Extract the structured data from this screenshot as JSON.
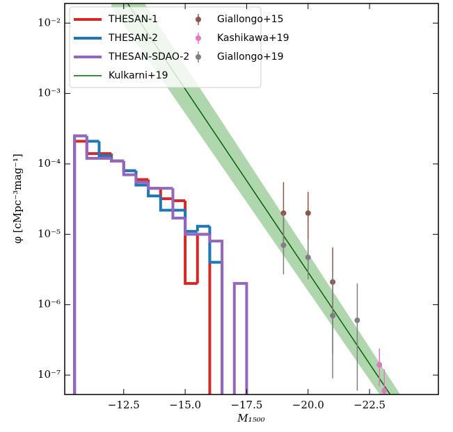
{
  "chart_data": {
    "type": "step-histogram",
    "x_label": "M₁₅₀₀",
    "y_label": "φ [cMpc⁻³mag⁻¹]",
    "xlim": [
      -10.1,
      -25.3
    ],
    "ylim": [
      5.3e-08,
      0.019
    ],
    "log_y": true,
    "xticks": [
      {
        "value": -12.5,
        "label": "−12.5"
      },
      {
        "value": -15,
        "label": "−15.0"
      },
      {
        "value": -17.5,
        "label": "−17.5"
      },
      {
        "value": -20,
        "label": "−20.0"
      },
      {
        "value": -22.5,
        "label": "−22.5"
      }
    ],
    "yticks": [
      {
        "value": 1e-07,
        "label": "10⁻⁷"
      },
      {
        "value": 1e-06,
        "label": "10⁻⁶"
      },
      {
        "value": 1e-05,
        "label": "10⁻⁵"
      },
      {
        "value": 0.0001,
        "label": "10⁻⁴"
      },
      {
        "value": 0.001,
        "label": "10⁻³"
      },
      {
        "value": 0.01,
        "label": "10⁻²"
      }
    ],
    "bins": [
      -10.5,
      -11,
      -11.5,
      -12,
      -12.5,
      -13,
      -13.5,
      -14,
      -14.5,
      -15,
      -15.5,
      -16,
      -16.5,
      -17,
      -17.5
    ],
    "series": [
      {
        "name": "THESAN-1",
        "color": "#d62728",
        "values": [
          0.00021,
          0.00014,
          0.00014,
          0.00011,
          8e-05,
          6e-05,
          4.5e-05,
          3.2e-05,
          3e-05,
          2e-06,
          1e-05,
          null,
          null,
          null
        ]
      },
      {
        "name": "THESAN-2",
        "color": "#1f77b4",
        "values": [
          0.00025,
          0.00021,
          0.00013,
          0.00011,
          8e-05,
          5e-05,
          3.5e-05,
          2.2e-05,
          2.2e-05,
          1.1e-05,
          1.3e-05,
          4e-06,
          null,
          null
        ]
      },
      {
        "name": "THESAN-SDAO-2",
        "color": "#9467bd",
        "values": [
          0.00025,
          0.00012,
          0.00012,
          0.00011,
          7e-05,
          5.5e-05,
          4.5e-05,
          4.5e-05,
          1.7e-05,
          1e-05,
          1e-05,
          8e-06,
          null,
          2e-06
        ]
      }
    ],
    "fit": {
      "name": "Kulkarni+19",
      "color": "#006400",
      "band_color": "#8fc58a",
      "x": [
        -12,
        -24
      ],
      "values": [
        0.042,
        2.4e-08
      ],
      "lower": [
        0.017,
        1.5e-08
      ],
      "upper": [
        0.1,
        3.9e-08
      ]
    },
    "points": [
      {
        "name": "Giallongo+15",
        "color": "#8c564b",
        "x": [
          -19,
          -20,
          -21
        ],
        "values": [
          2e-05,
          2e-05,
          2.1e-06
        ],
        "lower": [
          8e-06,
          7e-06,
          2e-07
        ],
        "upper": [
          5.5e-05,
          4e-05,
          6.5e-06
        ]
      },
      {
        "name": "Kashikawa+19",
        "color": "#e377c2",
        "x": [
          -22.9,
          -23.1
        ],
        "values": [
          1.4e-07,
          6e-08
        ],
        "lower": [
          7e-08,
          3e-08
        ],
        "upper": [
          2.4e-07,
          1.2e-07
        ]
      },
      {
        "name": "Giallongo+19",
        "color": "#7f7f7f",
        "x": [
          -19,
          -20,
          -21,
          -22
        ],
        "values": [
          7e-06,
          4.7e-06,
          7e-07,
          6e-07
        ],
        "lower": [
          2.7e-06,
          2.3e-06,
          9e-08,
          6e-08
        ],
        "upper": [
          2e-05,
          8.5e-06,
          3e-06,
          2e-06
        ]
      }
    ]
  }
}
